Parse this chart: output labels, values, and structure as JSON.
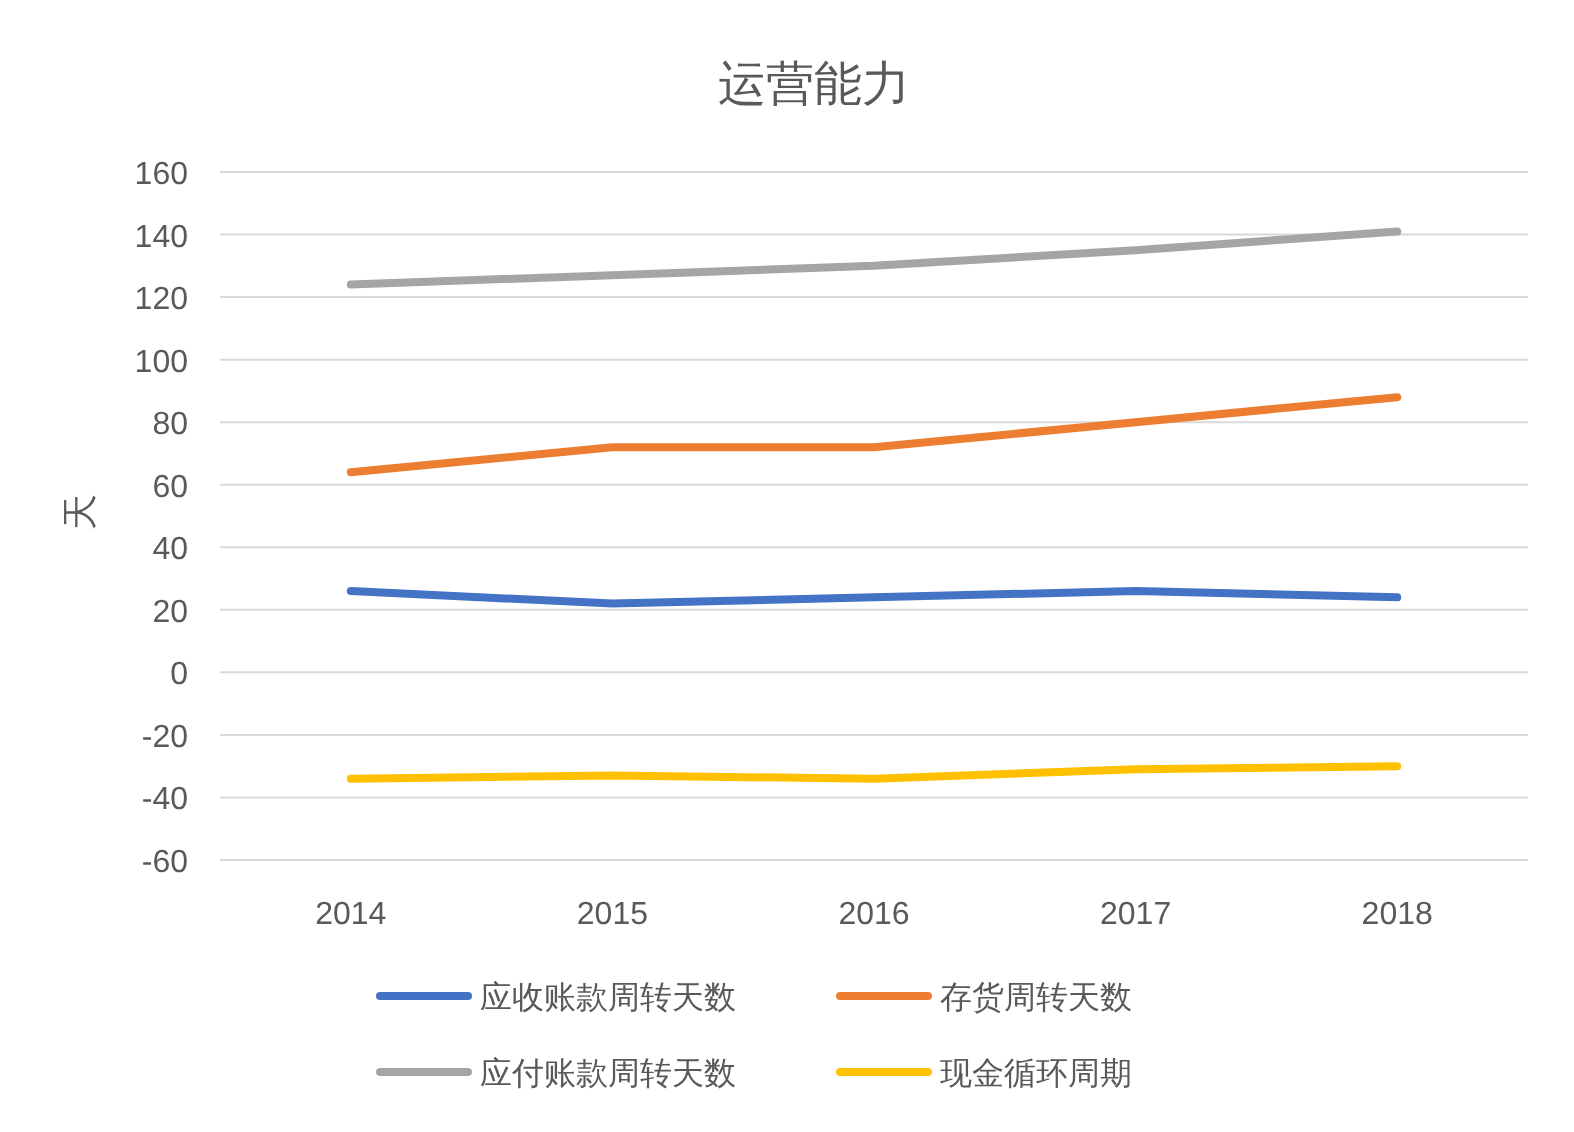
{
  "chart_data": {
    "type": "line",
    "title": "运营能力",
    "ylabel": "天",
    "categories": [
      "2014",
      "2015",
      "2016",
      "2017",
      "2018"
    ],
    "series": [
      {
        "name": "应收账款周转天数",
        "color": "#4472c4",
        "values": [
          26,
          22,
          24,
          26,
          24
        ]
      },
      {
        "name": "存货周转天数",
        "color": "#ed7d31",
        "values": [
          64,
          72,
          72,
          80,
          88
        ]
      },
      {
        "name": "应付账款周转天数",
        "color": "#a5a5a5",
        "values": [
          124,
          127,
          130,
          135,
          141
        ]
      },
      {
        "name": "现金循环周期",
        "color": "#ffc000",
        "values": [
          -34,
          -33,
          -34,
          -31,
          -30
        ]
      }
    ],
    "ylim": [
      -60,
      160
    ],
    "yticks": [
      -60,
      -40,
      -20,
      0,
      20,
      40,
      60,
      80,
      100,
      120,
      140,
      160
    ],
    "grid": "y",
    "legend": "bottom",
    "marker": "none",
    "line_style": "solid"
  }
}
